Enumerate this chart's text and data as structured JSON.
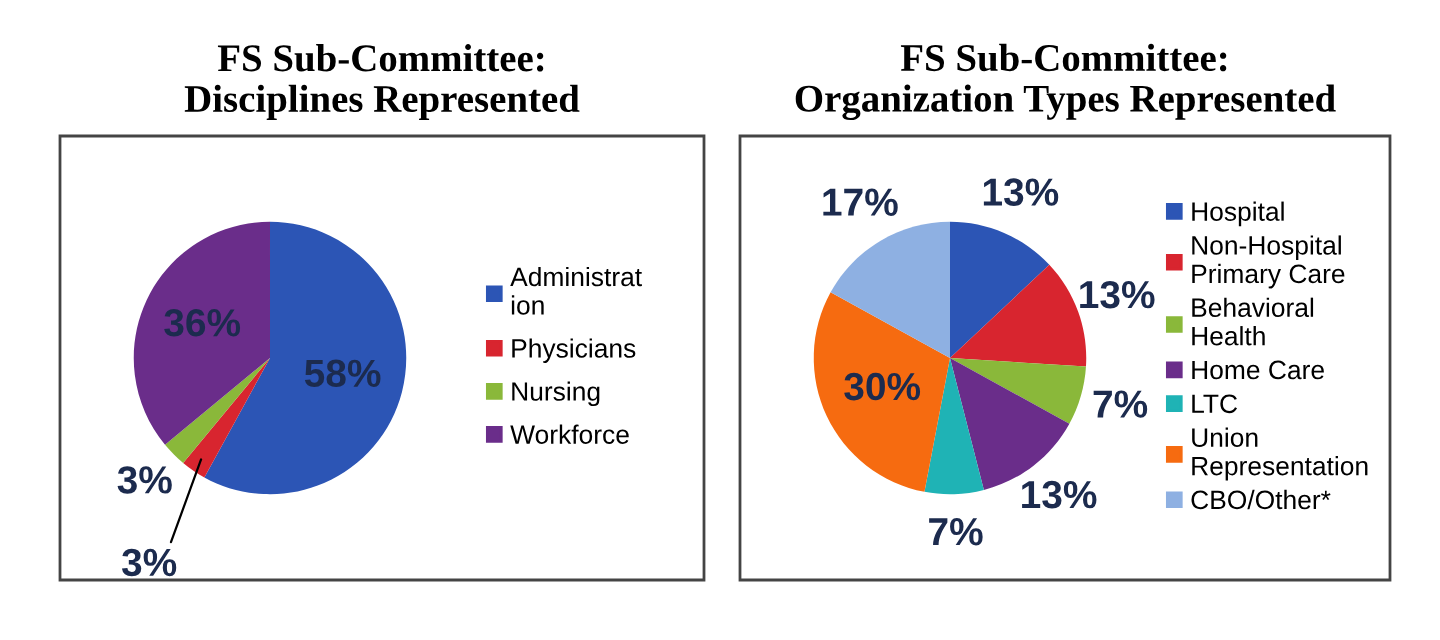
{
  "chart_data": [
    {
      "type": "pie",
      "title": "FS Sub-Committee:\nDisciplines Represented",
      "legend": "right",
      "categories": [
        "Administrat\nion",
        "Physicians",
        "Nursing",
        "Workforce"
      ],
      "values": [
        58,
        3,
        3,
        36
      ],
      "value_labels": [
        "58%",
        "3%",
        "3%",
        "36%"
      ],
      "colors": [
        "#2c55b5",
        "#d8252f",
        "#8ab83a",
        "#6a2d8a"
      ]
    },
    {
      "type": "pie",
      "title": "FS Sub-Committee:\nOrganization Types Represented",
      "legend": "right",
      "categories": [
        "Hospital",
        "Non-Hospital\nPrimary Care",
        "Behavioral\nHealth",
        "Home Care",
        "LTC",
        "Union\nRepresentation",
        "CBO/Other*"
      ],
      "values": [
        13,
        13,
        7,
        13,
        7,
        30,
        17
      ],
      "value_labels": [
        "13%",
        "13%",
        "7%",
        "13%",
        "7%",
        "30%",
        "17%"
      ],
      "colors": [
        "#2c55b5",
        "#d8252f",
        "#8ab83a",
        "#6a2d8a",
        "#1fb3b5",
        "#f66b10",
        "#8eb0e2"
      ]
    }
  ]
}
